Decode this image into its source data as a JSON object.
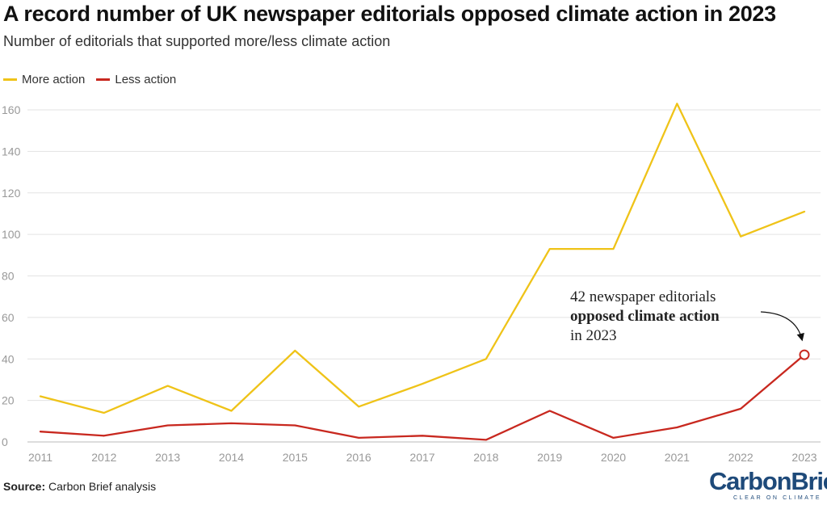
{
  "title": "A record number of UK newspaper editorials opposed climate action in 2023",
  "subtitle": "Number of editorials that supported more/less climate action",
  "legend": [
    {
      "label": "More action",
      "color": "#efc318"
    },
    {
      "label": "Less action",
      "color": "#c8281f"
    }
  ],
  "annotation": {
    "line1": "42 newspaper editorials",
    "line2_bold": "opposed climate action",
    "line3": "in 2023"
  },
  "source": {
    "label": "Source:",
    "text": "Carbon Brief analysis"
  },
  "logo": {
    "carbon": "Carbon",
    "brief": "Brief",
    "tagline": "CLEAR ON CLIMATE"
  },
  "chart_data": {
    "type": "line",
    "title": "A record number of UK newspaper editorials opposed climate action in 2023",
    "xlabel": "",
    "ylabel": "",
    "x": [
      "2011",
      "2012",
      "2013",
      "2014",
      "2015",
      "2016",
      "2017",
      "2018",
      "2019",
      "2020",
      "2021",
      "2022",
      "2023"
    ],
    "ylim": [
      0,
      170
    ],
    "yticks": [
      0,
      20,
      40,
      60,
      80,
      100,
      120,
      140,
      160
    ],
    "grid": true,
    "series": [
      {
        "name": "More action",
        "color": "#efc318",
        "values": [
          22,
          14,
          27,
          15,
          44,
          17,
          28,
          40,
          93,
          93,
          163,
          99,
          111
        ]
      },
      {
        "name": "Less action",
        "color": "#c8281f",
        "values": [
          5,
          3,
          8,
          9,
          8,
          2,
          3,
          1,
          15,
          2,
          7,
          16,
          42
        ]
      }
    ],
    "highlight": {
      "series": "Less action",
      "x": "2023",
      "value": 42
    }
  }
}
